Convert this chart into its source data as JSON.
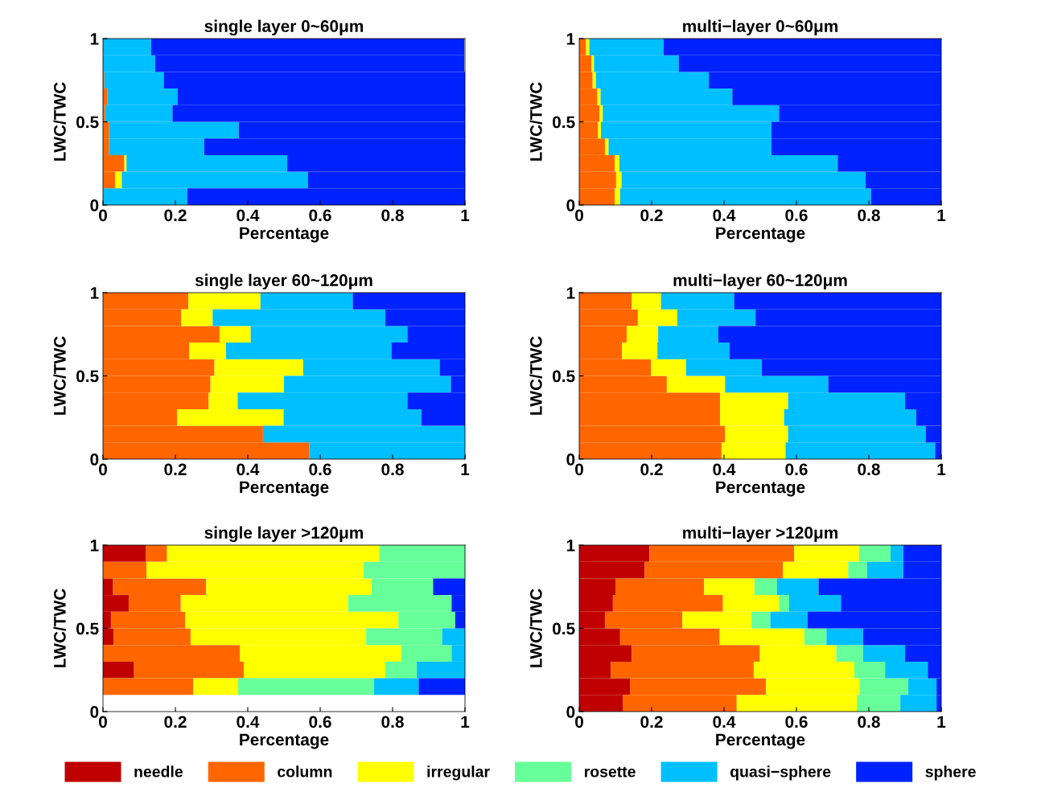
{
  "chart_data": [
    {
      "type": "bar",
      "orientation": "horizontal",
      "stacked": true,
      "title": "single layer 0~60μm",
      "xlabel": "Percentage",
      "ylabel": "LWC/TWC",
      "x": [
        0.05,
        0.15,
        0.25,
        0.35,
        0.45,
        0.55,
        0.65,
        0.75,
        0.85,
        0.95
      ],
      "xlim": [
        0,
        1
      ],
      "xticks": [
        0,
        0.2,
        0.4,
        0.6,
        0.8,
        1
      ],
      "ylim": [
        0,
        1
      ],
      "yticks": [
        0,
        0.5,
        1
      ],
      "series": [
        {
          "color": "#ff6600",
          "values": [
            0,
            0.034,
            0.059,
            0.017,
            0.017,
            0.006,
            0.012,
            0.004,
            0,
            0
          ]
        },
        {
          "color": "#ffff00",
          "values": [
            0,
            0.018,
            0.006,
            0,
            0,
            0,
            0,
            0,
            0,
            0
          ]
        },
        {
          "color": "#00bfff",
          "values": [
            0.233,
            0.514,
            0.444,
            0.263,
            0.358,
            0.186,
            0.194,
            0.164,
            0.144,
            0.133
          ]
        },
        {
          "color": "#0022ff",
          "values": [
            0.767,
            0.434,
            0.491,
            0.72,
            0.625,
            0.808,
            0.794,
            0.832,
            0.854,
            0.865
          ]
        }
      ]
    },
    {
      "type": "bar",
      "orientation": "horizontal",
      "stacked": true,
      "title": "multi−layer 0~60μm",
      "xlabel": "Percentage",
      "ylabel": "LWC/TWC",
      "x": [
        0.05,
        0.15,
        0.25,
        0.35,
        0.45,
        0.55,
        0.65,
        0.75,
        0.85,
        0.95
      ],
      "xlim": [
        0,
        1
      ],
      "xticks": [
        0,
        0.2,
        0.4,
        0.6,
        0.8,
        1
      ],
      "ylim": [
        0,
        1
      ],
      "yticks": [
        0,
        0.5,
        1
      ],
      "series": [
        {
          "color": "#ff6600",
          "values": [
            0.098,
            0.102,
            0.098,
            0.071,
            0.052,
            0.056,
            0.05,
            0.037,
            0.034,
            0.019
          ]
        },
        {
          "color": "#ffff00",
          "values": [
            0.015,
            0.015,
            0.013,
            0.01,
            0.008,
            0.009,
            0.009,
            0.009,
            0.007,
            0.009
          ]
        },
        {
          "color": "#00bfff",
          "values": [
            0.693,
            0.674,
            0.603,
            0.45,
            0.471,
            0.487,
            0.364,
            0.312,
            0.234,
            0.205
          ]
        },
        {
          "color": "#0022ff",
          "values": [
            0.194,
            0.209,
            0.286,
            0.469,
            0.469,
            0.448,
            0.577,
            0.642,
            0.725,
            0.767
          ]
        }
      ]
    },
    {
      "type": "bar",
      "orientation": "horizontal",
      "stacked": true,
      "title": "single layer 60~120μm",
      "xlabel": "Percentage",
      "ylabel": "LWC/TWC",
      "x": [
        0.05,
        0.15,
        0.25,
        0.35,
        0.45,
        0.55,
        0.65,
        0.75,
        0.85,
        0.95
      ],
      "xlim": [
        0,
        1
      ],
      "xticks": [
        0,
        0.2,
        0.4,
        0.6,
        0.8,
        1
      ],
      "ylim": [
        0,
        1
      ],
      "yticks": [
        0,
        0.5,
        1
      ],
      "series": [
        {
          "color": "#ff6600",
          "values": [
            0.57,
            0.442,
            0.205,
            0.292,
            0.297,
            0.308,
            0.238,
            0.322,
            0.216,
            0.236
          ]
        },
        {
          "color": "#ffff00",
          "values": [
            0,
            0,
            0.294,
            0.08,
            0.203,
            0.245,
            0.102,
            0.086,
            0.087,
            0.199
          ]
        },
        {
          "color": "#00bfff",
          "values": [
            0.43,
            0.558,
            0.381,
            0.469,
            0.461,
            0.377,
            0.457,
            0.433,
            0.477,
            0.255
          ]
        },
        {
          "color": "#0022ff",
          "values": [
            0,
            0,
            0.12,
            0.159,
            0.039,
            0.07,
            0.203,
            0.159,
            0.22,
            0.31
          ]
        }
      ]
    },
    {
      "type": "bar",
      "orientation": "horizontal",
      "stacked": true,
      "title": "multi−layer 60~120μm",
      "xlabel": "Percentage",
      "ylabel": "LWC/TWC",
      "x": [
        0.05,
        0.15,
        0.25,
        0.35,
        0.45,
        0.55,
        0.65,
        0.75,
        0.85,
        0.95
      ],
      "xlim": [
        0,
        1
      ],
      "xticks": [
        0,
        0.2,
        0.4,
        0.6,
        0.8,
        1
      ],
      "ylim": [
        0,
        1
      ],
      "yticks": [
        0,
        0.5,
        1
      ],
      "series": [
        {
          "color": "#ff6600",
          "values": [
            0.393,
            0.403,
            0.389,
            0.389,
            0.242,
            0.198,
            0.118,
            0.131,
            0.162,
            0.145
          ]
        },
        {
          "color": "#ffff00",
          "values": [
            0.177,
            0.174,
            0.177,
            0.188,
            0.161,
            0.097,
            0.098,
            0.087,
            0.109,
            0.081
          ]
        },
        {
          "color": "#00bfff",
          "values": [
            0.413,
            0.38,
            0.365,
            0.323,
            0.285,
            0.209,
            0.199,
            0.166,
            0.216,
            0.202
          ]
        },
        {
          "color": "#0022ff",
          "values": [
            0.017,
            0.043,
            0.069,
            0.1,
            0.312,
            0.496,
            0.585,
            0.616,
            0.513,
            0.572
          ]
        }
      ]
    },
    {
      "type": "bar",
      "orientation": "horizontal",
      "stacked": true,
      "title": "single layer >120μm",
      "xlabel": "Percentage",
      "ylabel": "LWC/TWC",
      "x": [
        0.15,
        0.25,
        0.35,
        0.45,
        0.55,
        0.65,
        0.75,
        0.85,
        0.95
      ],
      "xlim": [
        0,
        1
      ],
      "xticks": [
        0,
        0.2,
        0.4,
        0.6,
        0.8,
        1
      ],
      "ylim": [
        0,
        1
      ],
      "yticks": [
        0,
        0.5,
        1
      ],
      "series": [
        {
          "color": "#c00000",
          "values": [
            0,
            0.086,
            0,
            0.029,
            0.022,
            0.071,
            0.028,
            0,
            0.118
          ]
        },
        {
          "color": "#ff6600",
          "values": [
            0.249,
            0.303,
            0.378,
            0.213,
            0.205,
            0.144,
            0.257,
            0.12,
            0.059
          ]
        },
        {
          "color": "#ffff00",
          "values": [
            0.124,
            0.391,
            0.446,
            0.485,
            0.589,
            0.462,
            0.457,
            0.6,
            0.586
          ]
        },
        {
          "color": "#66ff99",
          "values": [
            0.376,
            0.087,
            0.139,
            0.21,
            0.157,
            0.286,
            0.17,
            0.28,
            0.237
          ]
        },
        {
          "color": "#00bfff",
          "values": [
            0.123,
            0.133,
            0.037,
            0.063,
            0,
            0,
            0,
            0,
            0
          ]
        },
        {
          "color": "#0022ff",
          "values": [
            0.128,
            0,
            0,
            0,
            0.027,
            0.037,
            0.088,
            0,
            0
          ]
        }
      ]
    },
    {
      "type": "bar",
      "orientation": "horizontal",
      "stacked": true,
      "title": "multi−layer >120μm",
      "xlabel": "Percentage",
      "ylabel": "LWC/TWC",
      "x": [
        0.05,
        0.15,
        0.25,
        0.35,
        0.45,
        0.55,
        0.65,
        0.75,
        0.85,
        0.95
      ],
      "xlim": [
        0,
        1
      ],
      "xticks": [
        0,
        0.2,
        0.4,
        0.6,
        0.8,
        1
      ],
      "ylim": [
        0,
        1
      ],
      "yticks": [
        0,
        0.5,
        1
      ],
      "legend": "bottom",
      "series": [
        {
          "name": "needle",
          "color": "#c00000",
          "values": [
            0.12,
            0.14,
            0.087,
            0.145,
            0.113,
            0.071,
            0.093,
            0.1,
            0.181,
            0.194
          ]
        },
        {
          "name": "column",
          "color": "#ff6600",
          "values": [
            0.315,
            0.376,
            0.395,
            0.354,
            0.275,
            0.214,
            0.304,
            0.245,
            0.382,
            0.4
          ]
        },
        {
          "name": "irregular",
          "color": "#ffff00",
          "values": [
            0.332,
            0.258,
            0.278,
            0.211,
            0.234,
            0.191,
            0.155,
            0.139,
            0.18,
            0.179
          ]
        },
        {
          "name": "rosette",
          "color": "#66ff99",
          "values": [
            0.12,
            0.135,
            0.085,
            0.074,
            0.061,
            0.052,
            0.028,
            0.062,
            0.052,
            0.087
          ]
        },
        {
          "name": "quasi−sphere",
          "color": "#00bfff",
          "values": [
            0.1,
            0.078,
            0.118,
            0.116,
            0.101,
            0.103,
            0.143,
            0.115,
            0.1,
            0.035
          ]
        },
        {
          "name": "sphere",
          "color": "#0022ff",
          "values": [
            0.013,
            0.013,
            0.037,
            0.1,
            0.216,
            0.369,
            0.277,
            0.339,
            0.105,
            0.105
          ]
        }
      ]
    }
  ]
}
